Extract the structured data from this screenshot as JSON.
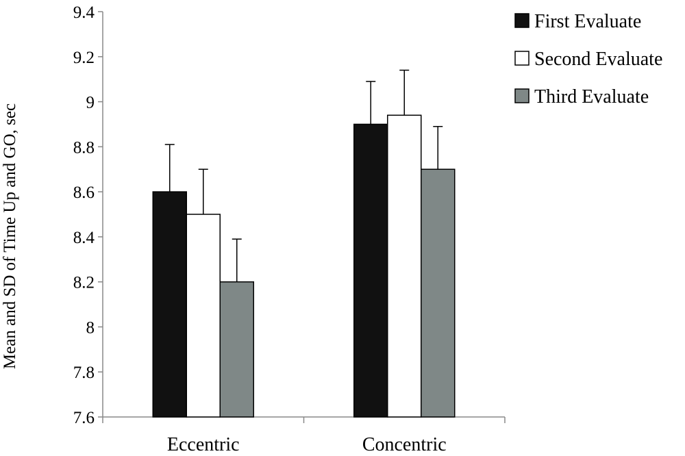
{
  "chart_data": {
    "type": "bar",
    "title": "",
    "xlabel": "",
    "ylabel": "Mean and SD of Time Up and GO, sec",
    "ylim": [
      7.6,
      9.4
    ],
    "yticks": [
      7.6,
      7.8,
      8,
      8.2,
      8.4,
      8.6,
      8.8,
      9,
      9.2,
      9.4
    ],
    "ytick_labels": [
      "7.6",
      "7.8",
      "8",
      "8.2",
      "8.4",
      "8.6",
      "8.8",
      "9",
      "9.2",
      "9.4"
    ],
    "categories": [
      "Eccentric",
      "Concentric"
    ],
    "series": [
      {
        "name": "First Evaluate",
        "color": "#111111",
        "values": [
          8.6,
          8.9
        ],
        "errors": [
          0.21,
          0.19
        ]
      },
      {
        "name": "Second Evaluate",
        "color": "#ffffff",
        "values": [
          8.5,
          8.94
        ],
        "errors": [
          0.2,
          0.2
        ]
      },
      {
        "name": "Third Evaluate",
        "color": "#7f8887",
        "values": [
          8.2,
          8.7
        ],
        "errors": [
          0.19,
          0.19
        ]
      }
    ],
    "error_bars": "upper",
    "grid": false,
    "legend_position": "top-right"
  }
}
